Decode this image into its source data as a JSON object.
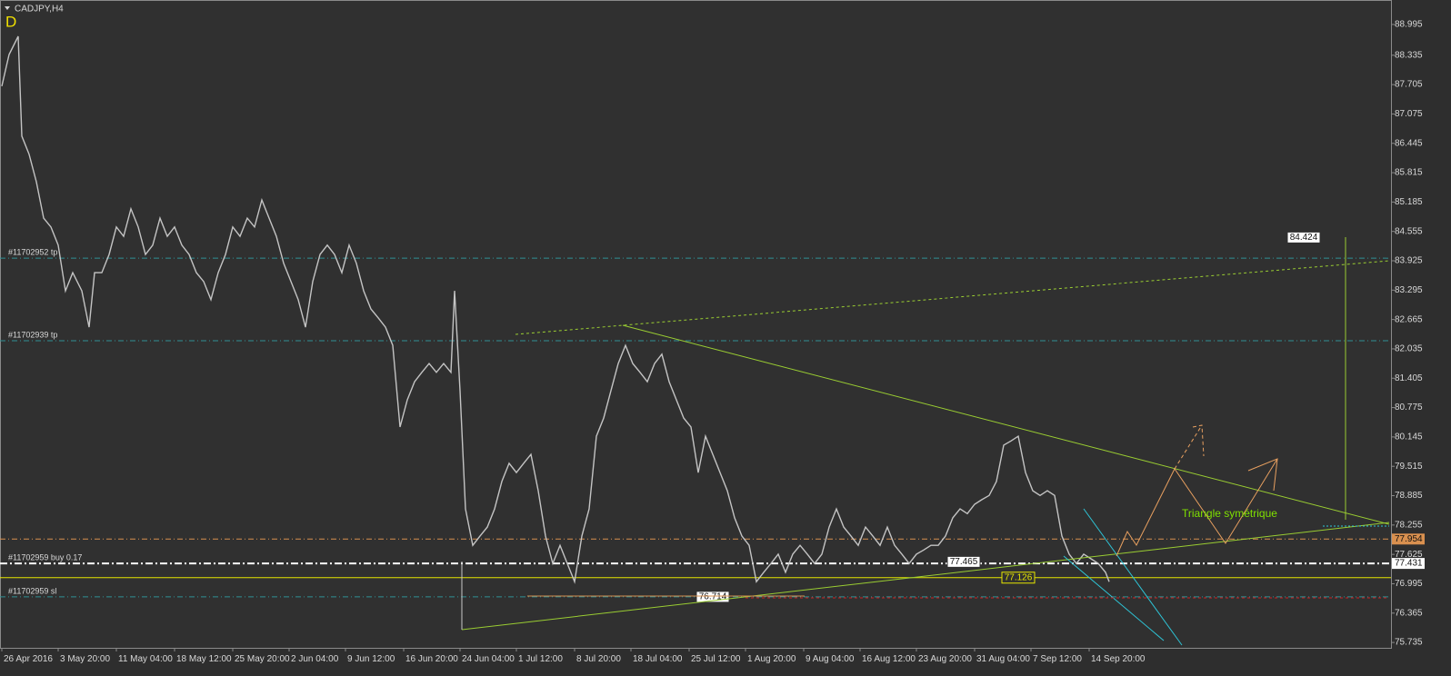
{
  "chart_data": {
    "type": "line",
    "title": "CADJPY,H4",
    "badge": "D",
    "color": "#c4c4c4",
    "xlim": [
      0,
      765
    ],
    "ylim": [
      75.62,
      89.52
    ],
    "yticks": [
      88.995,
      88.335,
      87.705,
      87.075,
      86.445,
      85.815,
      85.185,
      84.555,
      83.925,
      83.295,
      82.665,
      82.035,
      81.405,
      80.775,
      80.145,
      79.515,
      78.885,
      78.255,
      77.625,
      76.995,
      76.365,
      75.735
    ],
    "xticks": [
      {
        "value": 1,
        "label": "26 Apr 2016"
      },
      {
        "value": 32,
        "label": "3 May 20:00"
      },
      {
        "value": 64,
        "label": "11 May 04:00"
      },
      {
        "value": 96,
        "label": "18 May 12:00"
      },
      {
        "value": 128,
        "label": "25 May 20:00"
      },
      {
        "value": 159,
        "label": "2 Jun 04:00"
      },
      {
        "value": 190,
        "label": "9 Jun 12:00"
      },
      {
        "value": 222,
        "label": "16 Jun 20:00"
      },
      {
        "value": 253,
        "label": "24 Jun 04:00"
      },
      {
        "value": 284,
        "label": "1 Jul 12:00"
      },
      {
        "value": 316,
        "label": "8 Jul 20:00"
      },
      {
        "value": 347,
        "label": "18 Jul 04:00"
      },
      {
        "value": 379,
        "label": "25 Jul 12:00"
      },
      {
        "value": 410,
        "label": "1 Aug 20:00"
      },
      {
        "value": 442,
        "label": "9 Aug 04:00"
      },
      {
        "value": 473,
        "label": "16 Aug 12:00"
      },
      {
        "value": 504,
        "label": "23 Aug 20:00"
      },
      {
        "value": 536,
        "label": "31 Aug 04:00"
      },
      {
        "value": 567,
        "label": "7 Sep 12:00"
      },
      {
        "value": 599,
        "label": "14 Sep 20:00"
      }
    ],
    "x": [
      1,
      5,
      10,
      12,
      16,
      20,
      24,
      28,
      32,
      36,
      40,
      45,
      49,
      52,
      56,
      60,
      64,
      68,
      72,
      76,
      80,
      84,
      88,
      92,
      96,
      100,
      104,
      108,
      112,
      116,
      120,
      124,
      128,
      132,
      136,
      140,
      144,
      148,
      152,
      156,
      160,
      164,
      168,
      172,
      176,
      180,
      184,
      188,
      192,
      196,
      200,
      204,
      208,
      212,
      216,
      220,
      224,
      228,
      232,
      236,
      240,
      244,
      248,
      250,
      253,
      256,
      260,
      264,
      268,
      272,
      276,
      280,
      284,
      288,
      292,
      296,
      300,
      304,
      308,
      312,
      316,
      320,
      324,
      328,
      332,
      336,
      340,
      344,
      348,
      352,
      356,
      360,
      364,
      368,
      372,
      376,
      380,
      384,
      388,
      392,
      396,
      400,
      404,
      408,
      412,
      416,
      420,
      424,
      428,
      432,
      436,
      440,
      444,
      448,
      452,
      456,
      460,
      464,
      468,
      472,
      476,
      480,
      484,
      488,
      492,
      496,
      500,
      504,
      508,
      512,
      516,
      520,
      524,
      528,
      532,
      536,
      540,
      544,
      548,
      552,
      556,
      560,
      564,
      568,
      572,
      576,
      580,
      584,
      588,
      592,
      596,
      600,
      604,
      608,
      610
    ],
    "values": [
      87.67,
      88.35,
      88.74,
      86.6,
      86.21,
      85.62,
      84.84,
      84.65,
      84.26,
      83.28,
      83.67,
      83.28,
      82.5,
      83.67,
      83.67,
      84.06,
      84.65,
      84.45,
      85.04,
      84.65,
      84.06,
      84.26,
      84.84,
      84.45,
      84.65,
      84.26,
      84.06,
      83.67,
      83.48,
      83.09,
      83.67,
      84.06,
      84.65,
      84.45,
      84.84,
      84.65,
      85.23,
      84.84,
      84.45,
      83.87,
      83.48,
      83.09,
      82.5,
      83.48,
      84.06,
      84.26,
      84.06,
      83.67,
      84.26,
      83.87,
      83.28,
      82.89,
      82.7,
      82.5,
      82.11,
      80.36,
      80.94,
      81.33,
      81.53,
      81.72,
      81.53,
      81.72,
      81.53,
      83.28,
      81.14,
      78.6,
      77.82,
      78.02,
      78.21,
      78.6,
      79.19,
      79.58,
      79.38,
      79.58,
      79.77,
      78.99,
      78.02,
      77.43,
      77.82,
      77.43,
      77.04,
      78.02,
      78.6,
      80.16,
      80.55,
      81.14,
      81.72,
      82.11,
      81.72,
      81.53,
      81.33,
      81.72,
      81.92,
      81.33,
      80.94,
      80.55,
      80.36,
      79.38,
      80.16,
      79.77,
      79.38,
      78.99,
      78.41,
      78.02,
      77.82,
      77.04,
      77.24,
      77.43,
      77.63,
      77.24,
      77.63,
      77.82,
      77.63,
      77.43,
      77.63,
      78.21,
      78.6,
      78.21,
      78.02,
      77.82,
      78.21,
      78.02,
      77.82,
      78.21,
      77.82,
      77.63,
      77.43,
      77.63,
      77.72,
      77.82,
      77.82,
      78.02,
      78.41,
      78.6,
      78.5,
      78.7,
      78.8,
      78.89,
      79.19,
      79.97,
      80.06,
      80.16,
      79.38,
      78.99,
      78.89,
      78.99,
      78.89,
      78.02,
      77.63,
      77.43,
      77.63,
      77.53,
      77.43,
      77.24,
      77.04
    ],
    "levels": [
      {
        "label": "#11702952 tp",
        "value": 83.98,
        "color": "#2f8f94",
        "style": "dashdot"
      },
      {
        "label": "#11702939 tp",
        "value": 82.21,
        "color": "#2f8f94",
        "style": "dashdot"
      },
      {
        "value": 77.954,
        "color": "#d9904f",
        "style": "dashdot",
        "axis_label": true
      },
      {
        "label": "#11702959 buy 0.17",
        "value": 77.431,
        "color": "#ffffff",
        "style": "dashdot",
        "axis_label": true
      },
      {
        "value": 77.126,
        "color": "#e6e600",
        "style": "solid"
      },
      {
        "label": "#11702959 sl",
        "value": 76.714,
        "color": "#2f8f94",
        "style": "dashdot"
      }
    ],
    "price_boxes": [
      {
        "value": 84.424,
        "x": 717,
        "color": "#ffffff"
      },
      {
        "value": 77.465,
        "x": 530,
        "color": "#ffffff"
      },
      {
        "value": 77.126,
        "x": 560,
        "color": "#e6e600"
      },
      {
        "value": 76.714,
        "x": 392,
        "color": "#ffffff"
      }
    ],
    "annotation": "Triangle symétrique"
  }
}
